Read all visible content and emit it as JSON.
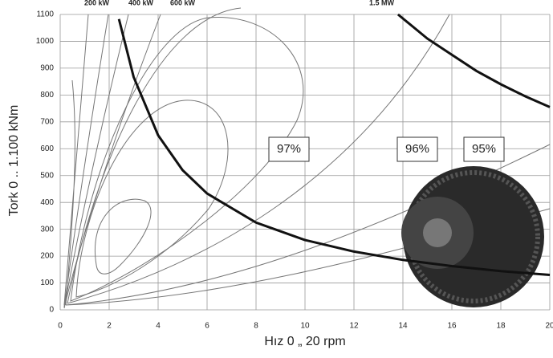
{
  "chart_data": {
    "type": "line",
    "x_label": "Hız 0 „ 20 rpm",
    "y_label": "Tork 0 .. 1.100 kNm",
    "annotations": [
      "200 kW",
      "400 kW",
      "600 kW",
      "1.5 MW",
      "97%",
      "96%",
      "95%"
    ],
    "xlim": [
      0,
      20
    ],
    "xticks": [
      0,
      2,
      4,
      6,
      8,
      10,
      12,
      14,
      16,
      18,
      20
    ],
    "ylim": [
      0,
      1100
    ],
    "yticks": [
      0,
      100,
      200,
      300,
      400,
      500,
      600,
      700,
      800,
      900,
      1000,
      1100
    ],
    "grid": true,
    "series": [
      {
        "color": "#111111",
        "x": [
          2.4,
          3,
          4,
          5,
          6,
          8,
          10,
          12,
          14,
          16,
          18,
          20
        ],
        "values": [
          1083,
          867,
          650,
          520,
          433,
          325,
          260,
          217,
          186,
          163,
          144,
          130
        ]
      },
      {
        "color": "#111111",
        "x": [
          13.8,
          15,
          16,
          17,
          18,
          19,
          20
        ],
        "values": [
          1100,
          1010,
          950,
          890,
          840,
          795,
          755
        ]
      }
    ]
  }
}
